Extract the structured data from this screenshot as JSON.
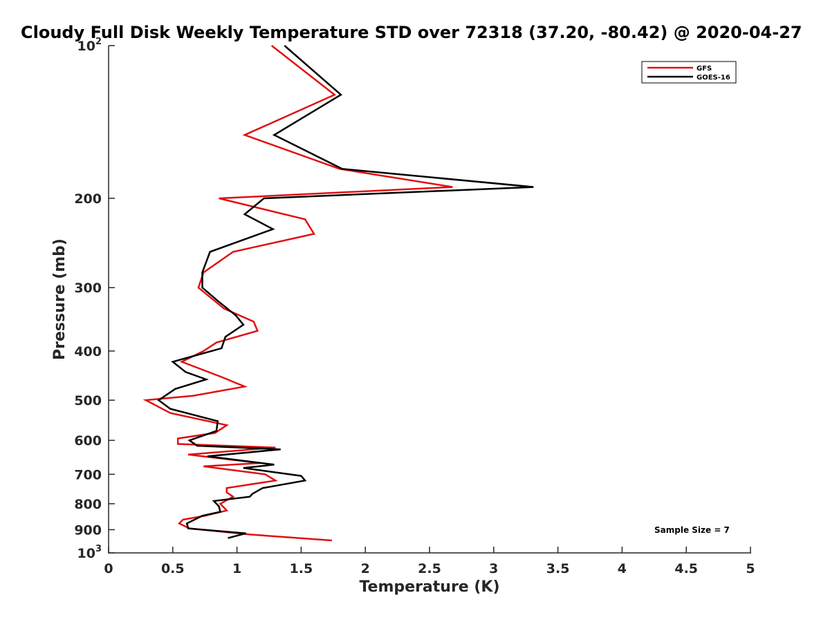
{
  "chart_data": {
    "type": "line",
    "title": "Cloudy Full Disk Weekly Temperature STD over 72318 (37.20, -80.42) @ 2020-04-27",
    "xlabel": "Temperature (K)",
    "ylabel": "Pressure (mb)",
    "xlim": [
      0,
      5
    ],
    "ylim": [
      100,
      1000
    ],
    "yscale": "log",
    "y_reversed": true,
    "x_ticks": [
      "0",
      "0.5",
      "1",
      "1.5",
      "2",
      "2.5",
      "3",
      "3.5",
      "4",
      "4.5",
      "5"
    ],
    "x_tick_values": [
      0,
      0.5,
      1,
      1.5,
      2,
      2.5,
      3,
      3.5,
      4,
      4.5,
      5
    ],
    "y_tick_values": [
      100,
      200,
      300,
      400,
      500,
      600,
      700,
      800,
      900,
      1000
    ],
    "y_tick_labels": [
      {
        "base": "10",
        "exp": "2"
      },
      {
        "base": "200"
      },
      {
        "base": "300"
      },
      {
        "base": "400"
      },
      {
        "base": "500"
      },
      {
        "base": "600"
      },
      {
        "base": "700"
      },
      {
        "base": "800"
      },
      {
        "base": "900"
      },
      {
        "base": "10",
        "exp": "3"
      }
    ],
    "legend_position": "top-right",
    "annotation": "Sample Size = 7",
    "series": [
      {
        "name": "GFS",
        "color": "#e01010",
        "points": [
          [
            1.27,
            100
          ],
          [
            1.76,
            125
          ],
          [
            1.06,
            150
          ],
          [
            1.8,
            175
          ],
          [
            2.68,
            190
          ],
          [
            0.86,
            200
          ],
          [
            1.53,
            220
          ],
          [
            1.6,
            235
          ],
          [
            0.97,
            255
          ],
          [
            0.74,
            280
          ],
          [
            0.7,
            300
          ],
          [
            0.9,
            330
          ],
          [
            1.13,
            350
          ],
          [
            1.16,
            365
          ],
          [
            0.84,
            385
          ],
          [
            0.74,
            400
          ],
          [
            0.57,
            420
          ],
          [
            0.88,
            450
          ],
          [
            1.06,
            470
          ],
          [
            0.66,
            490
          ],
          [
            0.29,
            500
          ],
          [
            0.48,
            530
          ],
          [
            0.92,
            560
          ],
          [
            0.83,
            580
          ],
          [
            0.54,
            595
          ],
          [
            0.54,
            610
          ],
          [
            1.3,
            620
          ],
          [
            0.62,
            640
          ],
          [
            1.18,
            665
          ],
          [
            0.74,
            675
          ],
          [
            1.22,
            700
          ],
          [
            1.3,
            720
          ],
          [
            0.92,
            745
          ],
          [
            0.92,
            760
          ],
          [
            0.97,
            775
          ],
          [
            0.87,
            800
          ],
          [
            0.92,
            825
          ],
          [
            0.75,
            845
          ],
          [
            0.58,
            860
          ],
          [
            0.55,
            875
          ],
          [
            0.63,
            895
          ],
          [
            1.1,
            920
          ],
          [
            1.74,
            945
          ]
        ]
      },
      {
        "name": "GOES-16",
        "color": "#000000",
        "points": [
          [
            1.37,
            100
          ],
          [
            1.81,
            125
          ],
          [
            1.29,
            150
          ],
          [
            1.82,
            175
          ],
          [
            3.31,
            190
          ],
          [
            1.21,
            200
          ],
          [
            1.06,
            215
          ],
          [
            1.28,
            230
          ],
          [
            0.79,
            255
          ],
          [
            0.73,
            280
          ],
          [
            0.73,
            300
          ],
          [
            0.86,
            320
          ],
          [
            0.99,
            340
          ],
          [
            1.05,
            355
          ],
          [
            0.91,
            375
          ],
          [
            0.88,
            395
          ],
          [
            0.5,
            420
          ],
          [
            0.6,
            440
          ],
          [
            0.76,
            455
          ],
          [
            0.52,
            475
          ],
          [
            0.39,
            500
          ],
          [
            0.48,
            520
          ],
          [
            0.85,
            550
          ],
          [
            0.84,
            575
          ],
          [
            0.63,
            600
          ],
          [
            0.69,
            615
          ],
          [
            1.34,
            625
          ],
          [
            0.77,
            645
          ],
          [
            1.29,
            670
          ],
          [
            1.05,
            680
          ],
          [
            1.5,
            705
          ],
          [
            1.53,
            720
          ],
          [
            1.2,
            745
          ],
          [
            1.12,
            765
          ],
          [
            1.1,
            775
          ],
          [
            0.82,
            790
          ],
          [
            0.86,
            810
          ],
          [
            0.87,
            830
          ],
          [
            0.73,
            845
          ],
          [
            0.61,
            875
          ],
          [
            0.62,
            895
          ],
          [
            1.07,
            915
          ],
          [
            0.93,
            935
          ]
        ]
      }
    ]
  }
}
